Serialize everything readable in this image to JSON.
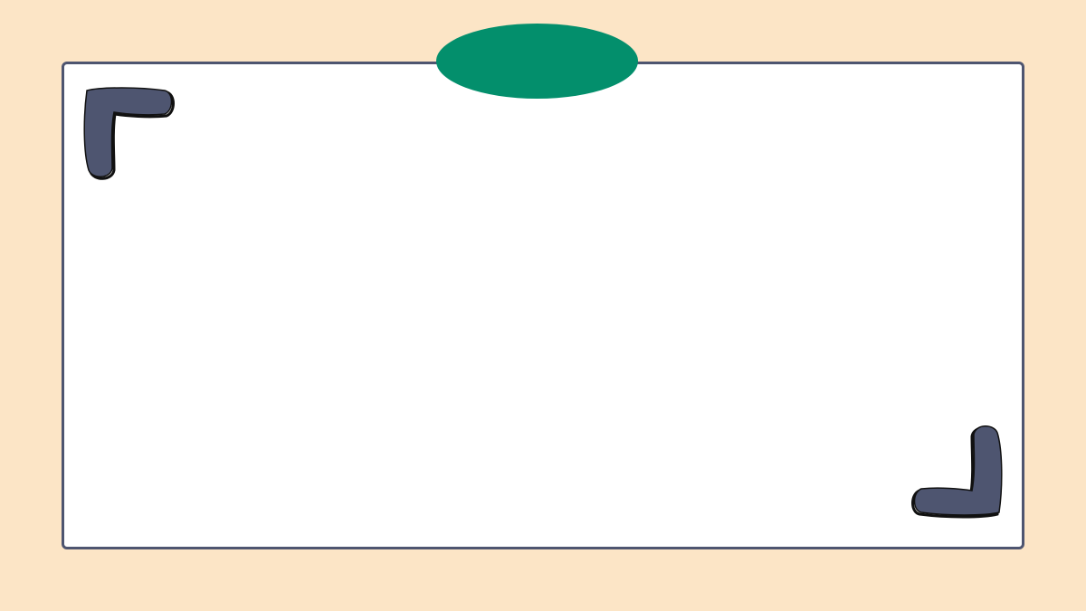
{
  "colors": {
    "background": "#fce5c6",
    "frame_fill": "#ffffff",
    "frame_border": "#4e5570",
    "oval_fill": "#038f6c",
    "bracket_fill": "#4e5570",
    "bracket_outline": "#111111"
  },
  "decorations": {
    "top_left": "corner-bracket-icon",
    "bottom_right": "corner-bracket-icon",
    "top_badge": "oval-badge"
  }
}
